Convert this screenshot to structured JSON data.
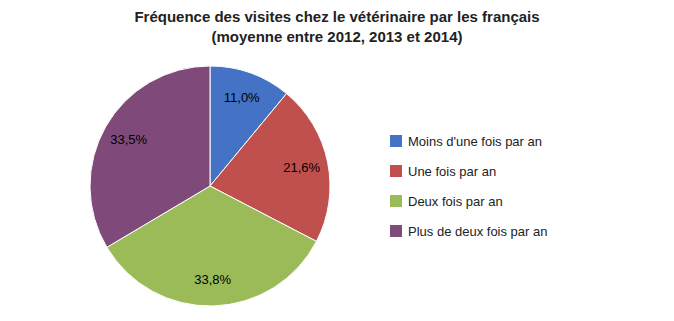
{
  "chart_data": {
    "type": "pie",
    "title": "Fréquence des visites chez le vétérinaire par les français",
    "subtitle": "(moyenne entre 2012, 2013 et 2014)",
    "categories": [
      "Moins d'une fois par an",
      "Une fois par an",
      "Deux fois par an",
      "Plus de deux fois par an"
    ],
    "values": [
      11.0,
      21.6,
      33.8,
      33.5
    ],
    "value_labels": [
      "11,0%",
      "21,6%",
      "33,8%",
      "33,5%"
    ],
    "colors": [
      "#4472C4",
      "#C0504D",
      "#9BBB59",
      "#7F497A"
    ],
    "data_labels": true,
    "legend": "right"
  }
}
